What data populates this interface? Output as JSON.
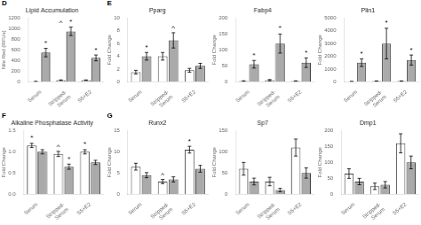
{
  "chart_data": [
    {
      "type": "bar",
      "label": "D",
      "title": "Lipid Accumulation",
      "ylabel": "Nile Red (RFUs)",
      "categories": [
        "Serum",
        "Stripped-\nSerum",
        "S5+E2"
      ],
      "series": [
        {
          "color": "white",
          "values": [
            5,
            30,
            30
          ],
          "errors": [
            2,
            5,
            5
          ],
          "annotations": [
            null,
            "^",
            null
          ],
          "annotation_y": [
            null,
            1040,
            null
          ]
        },
        {
          "color": "#aaaaaa",
          "values": [
            550,
            950,
            450
          ],
          "errors": [
            80,
            80,
            55
          ],
          "annotations": [
            "*",
            "*",
            "*"
          ],
          "annotation_y": [
            660,
            1060,
            530
          ]
        }
      ],
      "ylim": [
        0,
        1200
      ],
      "yticks": [
        0,
        200,
        400,
        600,
        800,
        1000,
        1200
      ],
      "grid": false
    },
    {
      "type": "bar",
      "label": "E",
      "title": "Pparg",
      "ylabel": "Fold Change",
      "categories": [
        "Serum",
        "Stripped-\nSerum",
        "S5+E2"
      ],
      "series": [
        {
          "color": "white",
          "values": [
            1.5,
            4.0,
            1.8
          ],
          "errors": [
            0.3,
            0.6,
            0.3
          ]
        },
        {
          "color": "#aaaaaa",
          "values": [
            4.0,
            6.5,
            2.5
          ],
          "errors": [
            0.6,
            1.2,
            0.4
          ],
          "annotations": [
            "*",
            "^",
            null
          ],
          "annotation_y": [
            4.8,
            7.9,
            null
          ]
        }
      ],
      "ylim": [
        0,
        10
      ],
      "yticks": [
        0,
        2,
        4,
        6,
        8,
        10
      ],
      "grid": false
    },
    {
      "type": "bar",
      "title": "Fabp4",
      "ylabel": "Fold Change",
      "categories": [
        "Serum",
        "Stripped-\nSerum",
        "S5+E2"
      ],
      "series": [
        {
          "color": "white",
          "values": [
            2,
            5,
            2
          ],
          "errors": [
            1,
            2,
            1
          ]
        },
        {
          "color": "#aaaaaa",
          "values": [
            55,
            120,
            60
          ],
          "errors": [
            12,
            30,
            15
          ],
          "annotations": [
            "*",
            "*",
            "*"
          ],
          "annotation_y": [
            70,
            158,
            78
          ]
        }
      ],
      "ylim": [
        0,
        200
      ],
      "yticks": [
        0,
        50,
        100,
        150,
        200
      ],
      "grid": false
    },
    {
      "type": "bar",
      "title": "Plin1",
      "ylabel": "Fold Change",
      "categories": [
        "Serum",
        "Stripped-\nSerum",
        "S5+E2"
      ],
      "series": [
        {
          "color": "white",
          "values": [
            20,
            50,
            50
          ],
          "errors": [
            10,
            20,
            20
          ]
        },
        {
          "color": "#aaaaaa",
          "values": [
            1500,
            3000,
            1700
          ],
          "errors": [
            300,
            1200,
            400
          ],
          "annotations": [
            "*",
            "*",
            "*"
          ],
          "annotation_y": [
            1900,
            4350,
            2200
          ]
        }
      ],
      "ylim": [
        0,
        5000
      ],
      "yticks": [
        0,
        1000,
        2000,
        3000,
        4000,
        5000
      ],
      "grid": false
    },
    {
      "type": "bar",
      "label": "F",
      "title": "Alkaline Phosphatase Activity",
      "ylabel": "Fold Change",
      "categories": [
        "Serum",
        "Stripped-\nSerum",
        "S5+E2"
      ],
      "series": [
        {
          "color": "white",
          "values": [
            1.15,
            0.95,
            1.0
          ],
          "errors": [
            0.05,
            0.06,
            0.05
          ],
          "annotations": [
            "*",
            "^",
            "*"
          ],
          "annotation_y": [
            1.24,
            1.04,
            1.09
          ]
        },
        {
          "color": "#aaaaaa",
          "values": [
            1.0,
            0.65,
            0.75
          ],
          "errors": [
            0.05,
            0.06,
            0.05
          ],
          "annotations": [
            null,
            "*",
            null
          ],
          "annotation_y": [
            null,
            0.75,
            null
          ]
        }
      ],
      "ylim": [
        0,
        1.5
      ],
      "yticks": [
        {
          "value": 0,
          "label": "0.0"
        },
        0.5,
        {
          "value": 1,
          "label": "1.0"
        },
        1.5
      ],
      "grid": false
    },
    {
      "type": "bar",
      "label": "G",
      "title": "Runx2",
      "ylabel": "Fold Change",
      "categories": [
        "Serum",
        "Stripped-\nSerum",
        "S5+E2"
      ],
      "series": [
        {
          "color": "white",
          "values": [
            6.5,
            3.0,
            10.5
          ],
          "errors": [
            0.8,
            0.5,
            0.8
          ],
          "annotations": [
            null,
            "^",
            "*"
          ],
          "annotation_y": [
            null,
            3.6,
            11.5
          ]
        },
        {
          "color": "#aaaaaa",
          "values": [
            4.5,
            3.5,
            6.0
          ],
          "errors": [
            0.6,
            0.6,
            0.8
          ]
        }
      ],
      "ylim": [
        0,
        15
      ],
      "yticks": [
        0,
        5,
        10,
        15
      ],
      "grid": false
    },
    {
      "type": "bar",
      "title": "Sp7",
      "ylabel": "Fold Change",
      "categories": [
        "Serum",
        "Stripped-\nSerum",
        "S5+E2"
      ],
      "series": [
        {
          "color": "white",
          "values": [
            60,
            30,
            110
          ],
          "errors": [
            15,
            10,
            20
          ]
        },
        {
          "color": "#aaaaaa",
          "values": [
            30,
            10,
            50
          ],
          "errors": [
            8,
            4,
            12
          ]
        }
      ],
      "ylim": [
        0,
        150
      ],
      "yticks": [
        0,
        50,
        100,
        150
      ],
      "grid": false
    },
    {
      "type": "bar",
      "title": "Dmp1",
      "ylabel": "Fold Change",
      "categories": [
        "Serum",
        "Stripped-\nSerum",
        "S5+E2"
      ],
      "series": [
        {
          "color": "white",
          "values": [
            65,
            25,
            160
          ],
          "errors": [
            15,
            10,
            30
          ]
        },
        {
          "color": "#aaaaaa",
          "values": [
            40,
            30,
            100
          ],
          "errors": [
            10,
            10,
            20
          ]
        }
      ],
      "ylim": [
        0,
        200
      ],
      "yticks": [
        0,
        50,
        100,
        150,
        200
      ],
      "grid": false
    }
  ]
}
